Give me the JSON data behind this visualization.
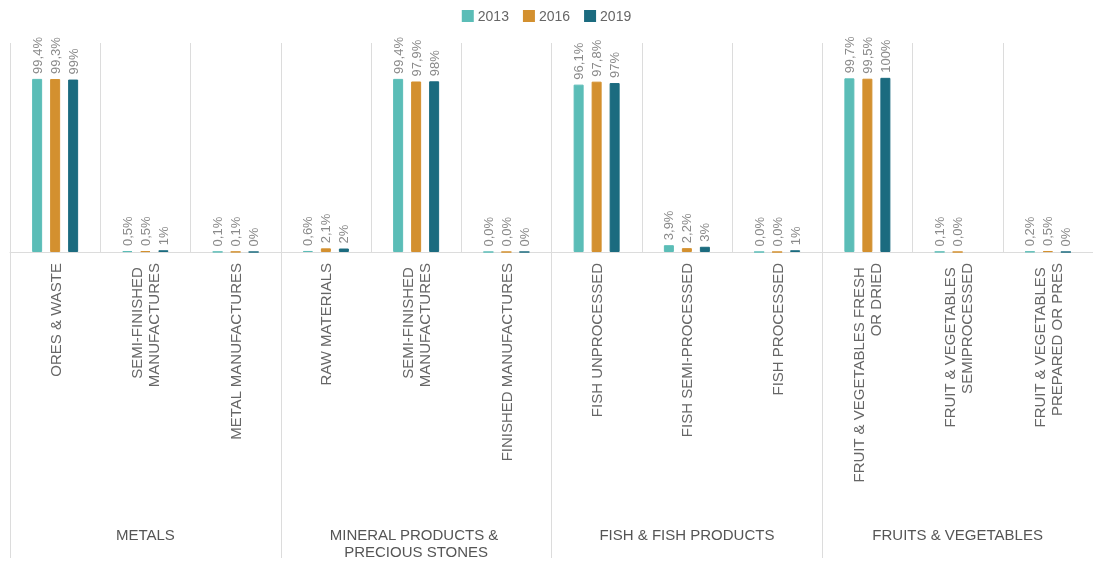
{
  "chart_data": {
    "type": "bar",
    "categories": [
      "ORES & WASTE",
      "SEMI-FINISHED MANUFACTURES",
      "METAL MANUFACTURES",
      "RAW MATERIALS",
      "SEMI-FINISHED MANUFACTURES",
      "FINISHED MANUFACTURES",
      "FISH UNPROCESSED",
      "FISH SEMI-PROCESSED",
      "FISH PROCESSED",
      "FRUIT & VEGETABLES FRESH OR DRIED",
      "FRUIT & VEGETABLES SEMIPROCESSED",
      "FRUIT & VEGETABLES PREPARED OR PRES"
    ],
    "series": [
      {
        "name": "2013",
        "color": "#5bbdb7",
        "values": [
          99.4,
          0.5,
          0.1,
          0.6,
          99.4,
          0.0,
          96.1,
          3.9,
          0.0,
          99.7,
          0.1,
          0.2
        ],
        "value_labels": [
          "99,4%",
          "0,5%",
          "0,1%",
          "0,6%",
          "99,4%",
          "0,0%",
          "96,1%",
          "3,9%",
          "0,0%",
          "99,7%",
          "0,1%",
          "0,2%"
        ]
      },
      {
        "name": "2016",
        "color": "#d3902f",
        "values": [
          99.3,
          0.5,
          0.1,
          2.1,
          97.9,
          0.0,
          97.8,
          2.2,
          0.0,
          99.5,
          0.0,
          0.5
        ],
        "value_labels": [
          "99,3%",
          "0,5%",
          "0,1%",
          "2,1%",
          "97,9%",
          "0,0%",
          "97,8%",
          "2,2%",
          "0,0%",
          "99,5%",
          "0,0%",
          "0,5%"
        ]
      },
      {
        "name": "2019",
        "color": "#1b6b7f",
        "values": [
          99,
          1,
          0,
          2,
          98,
          0,
          97,
          3,
          1,
          100,
          null,
          0
        ],
        "value_labels": [
          "99%",
          "1%",
          "0%",
          "2%",
          "98%",
          "0%",
          "97%",
          "3%",
          "1%",
          "100%",
          null,
          "0%"
        ]
      }
    ],
    "ylim": [
      0,
      120
    ],
    "tick_labels": "x",
    "grid": "x",
    "legend": "top",
    "annotations": [
      "METALS",
      "MINERAL PRODUCTS & PRECIOUS STONES",
      "FISH & FISH PRODUCTS",
      "FRUITS & VEGETABLES"
    ]
  }
}
